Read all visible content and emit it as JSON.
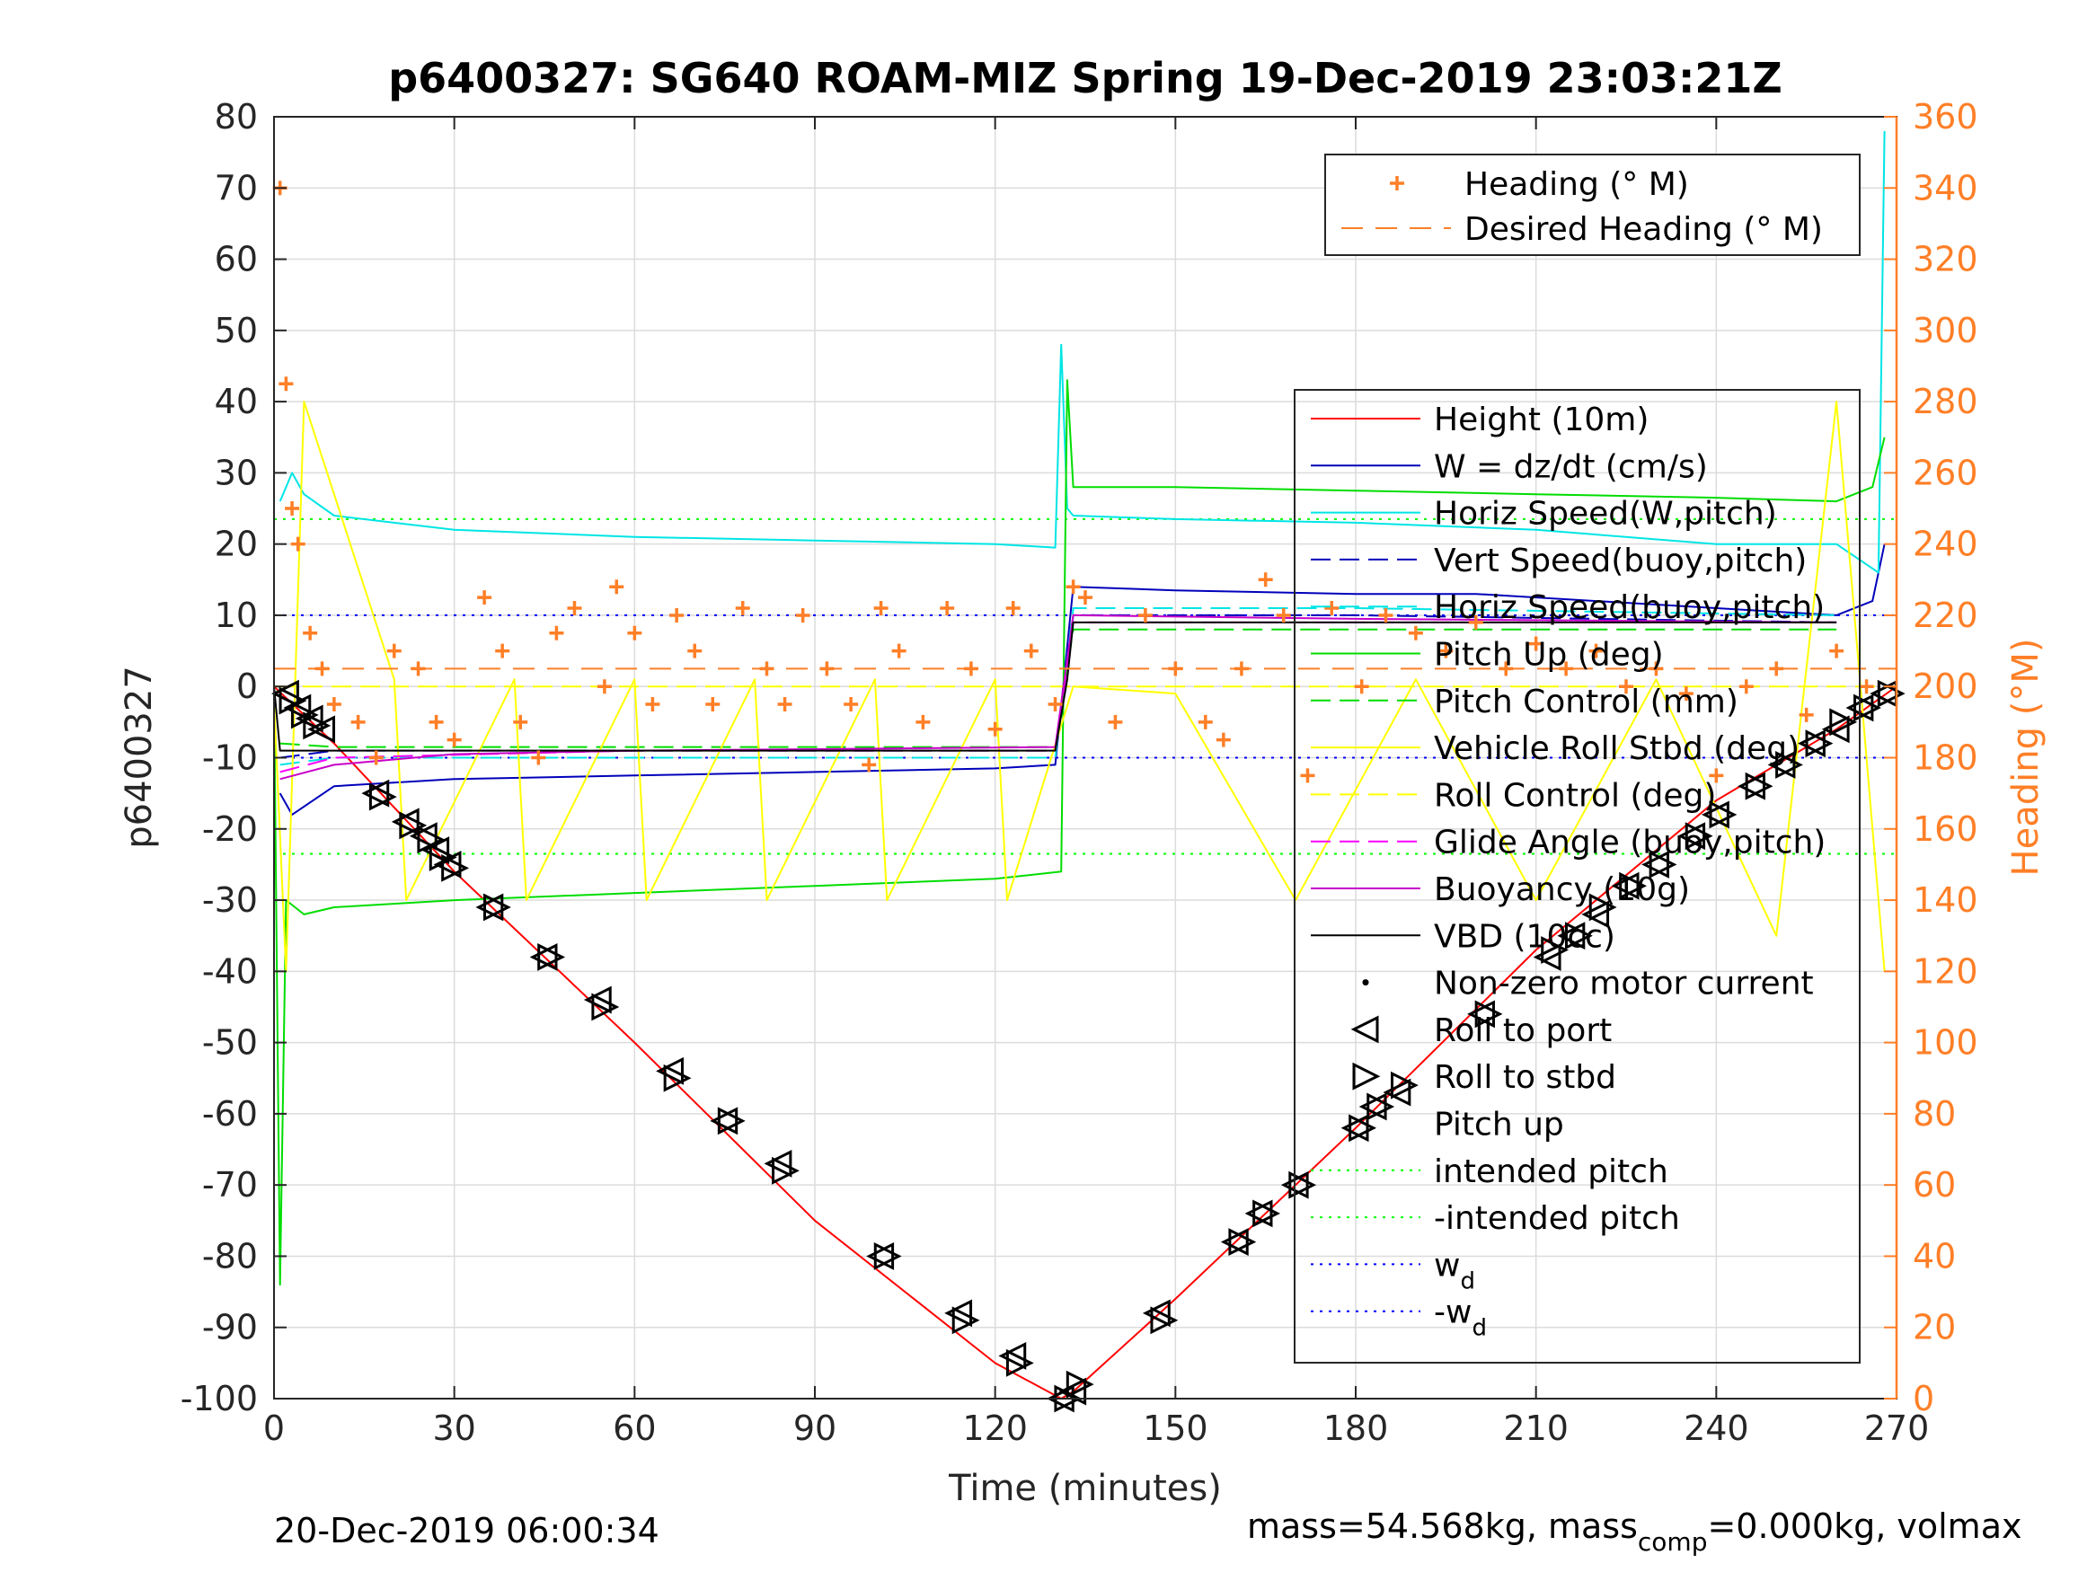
{
  "chart_data": {
    "type": "line",
    "title": "p6400327: SG640 ROAM-MIZ Spring 19-Dec-2019 23:03:21Z",
    "xlabel": "Time (minutes)",
    "ylabel": "p6400327",
    "y2label": "Heading (°M)",
    "xlim": [
      0,
      270
    ],
    "ylim": [
      -100,
      80
    ],
    "y2lim": [
      0,
      360
    ],
    "xticks": [
      0,
      30,
      60,
      90,
      120,
      150,
      180,
      210,
      240,
      270
    ],
    "yticks": [
      -100,
      -90,
      -80,
      -70,
      -60,
      -50,
      -40,
      -30,
      -20,
      -10,
      0,
      10,
      20,
      30,
      40,
      50,
      60,
      70,
      80
    ],
    "y2ticks": [
      0,
      20,
      40,
      60,
      80,
      100,
      120,
      140,
      160,
      180,
      200,
      220,
      240,
      260,
      280,
      300,
      320,
      340,
      360
    ],
    "grid": true,
    "footer_left": "20-Dec-2019 06:00:34",
    "footer_right": "mass=54.568kg, mass",
    "footer_right_sub": "comp",
    "footer_right_tail": "=0.000kg, volmax",
    "colors": {
      "height": "#ff0000",
      "w": "#0000bb",
      "horiz": "#00e5e5",
      "pitch": "#00dd00",
      "roll": "#ffff00",
      "glide": "#ff00ff",
      "buoyancy": "#c800c8",
      "vbd": "#000000",
      "heading": "#ff7f27",
      "intended_pitch": "#00ff00",
      "wd": "#0000ff"
    },
    "legend_heading": {
      "position": "top-right",
      "entries": [
        "Heading (° M)",
        "Desired Heading (° M)"
      ]
    },
    "legend_main": {
      "position": "right",
      "entries": [
        "Height (10m)",
        "W = dz/dt (cm/s)",
        "Horiz Speed(W,pitch)",
        "Vert Speed(buoy,pitch)",
        "Horiz Speed(buoy,pitch)",
        "Pitch Up (deg)",
        "Pitch Control (mm)",
        "Vehicle Roll Stbd (deg)",
        "Roll Control (deg)",
        "Glide Angle (buoy,pitch)",
        "Buoyancy (10g)",
        "VBD (10cc)",
        "Non-zero motor current",
        "Roll to port",
        "Roll to stbd",
        "Pitch up",
        "intended pitch",
        "-intended pitch",
        "w",
        "-w"
      ],
      "subscript": "d"
    },
    "series": [
      {
        "name": "Height (10m)",
        "x": [
          0,
          5,
          10,
          30,
          60,
          90,
          120,
          131,
          133,
          150,
          180,
          210,
          240,
          260,
          270
        ],
        "y": [
          0,
          -4,
          -8,
          -26,
          -50,
          -75,
          -95,
          -100,
          -99,
          -86,
          -62,
          -37,
          -16,
          -6,
          0
        ]
      },
      {
        "name": "W = dz/dt (cm/s)",
        "x": [
          1,
          3,
          10,
          30,
          60,
          90,
          120,
          130,
          133,
          150,
          180,
          200,
          240,
          260,
          266,
          268
        ],
        "y": [
          -15,
          -18,
          -14,
          -13,
          -12.5,
          -12,
          -11.5,
          -11,
          14,
          13.5,
          13,
          13,
          11,
          10,
          12,
          20
        ]
      },
      {
        "name": "Horiz Speed(W,pitch)",
        "x": [
          1,
          3,
          5,
          10,
          30,
          60,
          90,
          120,
          130,
          131,
          132,
          133,
          150,
          180,
          210,
          240,
          260,
          267,
          268
        ],
        "y": [
          26,
          30,
          27,
          24,
          22,
          21,
          20.5,
          20,
          19.5,
          48,
          25,
          24,
          23.5,
          23,
          22,
          20,
          20,
          16,
          78
        ]
      },
      {
        "name": "Vert Speed(buoy,pitch)",
        "x": [
          1,
          10,
          60,
          130,
          133,
          180,
          260
        ],
        "y": [
          -10,
          -9,
          -9,
          -9,
          10,
          10,
          9
        ]
      },
      {
        "name": "Horiz Speed(buoy,pitch)",
        "x": [
          1,
          10,
          60,
          130,
          133,
          180,
          260
        ],
        "y": [
          -11,
          -10,
          -10,
          -10,
          11,
          11,
          10
        ]
      },
      {
        "name": "Pitch Up (deg)",
        "x": [
          0,
          1,
          2,
          5,
          10,
          30,
          60,
          90,
          120,
          131,
          132,
          133,
          150,
          180,
          210,
          240,
          260,
          266,
          268
        ],
        "y": [
          0,
          -84,
          -30,
          -32,
          -31,
          -30,
          -29,
          -28,
          -27,
          -26,
          43,
          28,
          28,
          27.5,
          27,
          26.5,
          26,
          28,
          35
        ]
      },
      {
        "name": "Pitch Control (mm)",
        "x": [
          1,
          10,
          60,
          130,
          133,
          180,
          260
        ],
        "y": [
          -8,
          -8.5,
          -8.5,
          -8.5,
          8,
          8,
          8
        ]
      },
      {
        "name": "Vehicle Roll Stbd (deg)",
        "x": [
          0,
          2,
          5,
          20,
          22,
          40,
          42,
          60,
          62,
          80,
          82,
          100,
          102,
          120,
          122,
          133,
          150,
          170,
          190,
          210,
          230,
          250,
          260,
          268
        ],
        "y": [
          -2,
          -40,
          40,
          1,
          -30,
          1,
          -30,
          1,
          -30,
          1,
          -30,
          1,
          -30,
          1,
          -30,
          0,
          -1,
          -30,
          1,
          -30,
          1,
          -35,
          40,
          -40
        ]
      },
      {
        "name": "Roll Control (deg)",
        "x": [
          0,
          270
        ],
        "y": [
          0,
          0
        ]
      },
      {
        "name": "Glide Angle (buoy,pitch)",
        "x": [
          1,
          10,
          60,
          130,
          133,
          180,
          260
        ],
        "y": [
          -12,
          -10,
          -9,
          -9,
          9,
          9,
          9
        ]
      },
      {
        "name": "Buoyancy (10g)",
        "x": [
          1,
          10,
          30,
          60,
          90,
          130,
          133,
          180,
          260
        ],
        "y": [
          -13,
          -11,
          -9.5,
          -9,
          -8.8,
          -8.5,
          10,
          9.5,
          9
        ]
      },
      {
        "name": "VBD (10cc)",
        "x": [
          0,
          1,
          10,
          60,
          130,
          132,
          133,
          180,
          260
        ],
        "y": [
          0,
          -9,
          -9,
          -9,
          -9,
          1,
          9,
          9,
          9
        ]
      },
      {
        "name": "intended pitch",
        "x": [
          0,
          270
        ],
        "y": [
          23.5,
          23.5
        ]
      },
      {
        "name": "-intended pitch",
        "x": [
          0,
          270
        ],
        "y": [
          -23.5,
          -23.5
        ]
      },
      {
        "name": "w",
        "x": [
          0,
          270
        ],
        "y": [
          10,
          10
        ]
      },
      {
        "name": "-w",
        "x": [
          0,
          270
        ],
        "y": [
          -10,
          -10
        ]
      }
    ],
    "heading": {
      "name": "Heading (° M)",
      "x": [
        1,
        2,
        3,
        4,
        6,
        8,
        10,
        14,
        17,
        20,
        24,
        27,
        30,
        35,
        38,
        41,
        44,
        47,
        50,
        55,
        57,
        60,
        63,
        67,
        70,
        73,
        78,
        82,
        85,
        88,
        92,
        96,
        99,
        101,
        104,
        108,
        112,
        116,
        120,
        123,
        126,
        130,
        133,
        135,
        140,
        145,
        150,
        155,
        158,
        161,
        165,
        168,
        172,
        176,
        181,
        185,
        190,
        195,
        200,
        205,
        210,
        215,
        220,
        225,
        230,
        235,
        240,
        245,
        250,
        255,
        260,
        265
      ],
      "y": [
        340,
        285,
        250,
        240,
        215,
        205,
        195,
        190,
        180,
        210,
        205,
        190,
        185,
        225,
        210,
        190,
        180,
        215,
        222,
        200,
        228,
        215,
        195,
        220,
        210,
        195,
        222,
        205,
        195,
        220,
        205,
        195,
        178,
        222,
        210,
        190,
        222,
        205,
        188,
        222,
        210,
        195,
        228,
        225,
        190,
        220,
        205,
        190,
        185,
        205,
        230,
        220,
        175,
        222,
        200,
        220,
        215,
        210,
        218,
        205,
        212,
        205,
        210,
        200,
        205,
        198,
        175,
        200,
        205,
        192,
        210,
        200
      ]
    },
    "desired_heading": {
      "name": "Desired Heading (° M)",
      "x": [
        0,
        270
      ],
      "y": [
        205,
        205
      ]
    },
    "markers": {
      "roll_to_port": {
        "name": "Roll to port",
        "x": [
          2,
          4,
          6,
          8,
          17,
          22,
          25,
          27,
          29,
          36,
          45,
          54,
          66,
          75,
          84,
          101,
          114,
          123,
          131,
          133,
          147,
          160,
          164,
          170,
          180,
          183,
          187,
          201,
          212,
          216,
          220,
          225,
          230,
          236,
          240,
          246,
          251,
          256,
          260,
          264,
          268
        ],
        "y": [
          -1,
          -3,
          -4.5,
          -6,
          -15,
          -19,
          -21,
          -23,
          -25,
          -31,
          -38,
          -44,
          -54,
          -61,
          -67,
          -80,
          -88,
          -94,
          -100,
          -99,
          -88,
          -78,
          -74,
          -70,
          -62,
          -59,
          -57,
          -46,
          -38,
          -35,
          -32,
          -28,
          -25,
          -21,
          -18,
          -14,
          -11,
          -8,
          -6,
          -3,
          -1
        ]
      },
      "roll_to_stbd": {
        "name": "Roll to stbd",
        "x": [
          3,
          5,
          7,
          18,
          23,
          26,
          28,
          30,
          37,
          46,
          55,
          67,
          76,
          85,
          102,
          115,
          124,
          132,
          134,
          148,
          161,
          165,
          171,
          181,
          184,
          188,
          202,
          213,
          217,
          221,
          226,
          231,
          237,
          241,
          247,
          252,
          257,
          261,
          265,
          269
        ],
        "y": [
          -2,
          -4,
          -5.5,
          -15.5,
          -19.5,
          -21.5,
          -24,
          -25.5,
          -31,
          -38,
          -45,
          -55,
          -61,
          -68,
          -80,
          -89,
          -95,
          -100,
          -98,
          -89,
          -78,
          -74,
          -70,
          -62,
          -59,
          -56,
          -46,
          -37,
          -35,
          -31,
          -28,
          -25,
          -21,
          -18,
          -14,
          -11,
          -8,
          -5,
          -3,
          -1
        ]
      }
    }
  }
}
